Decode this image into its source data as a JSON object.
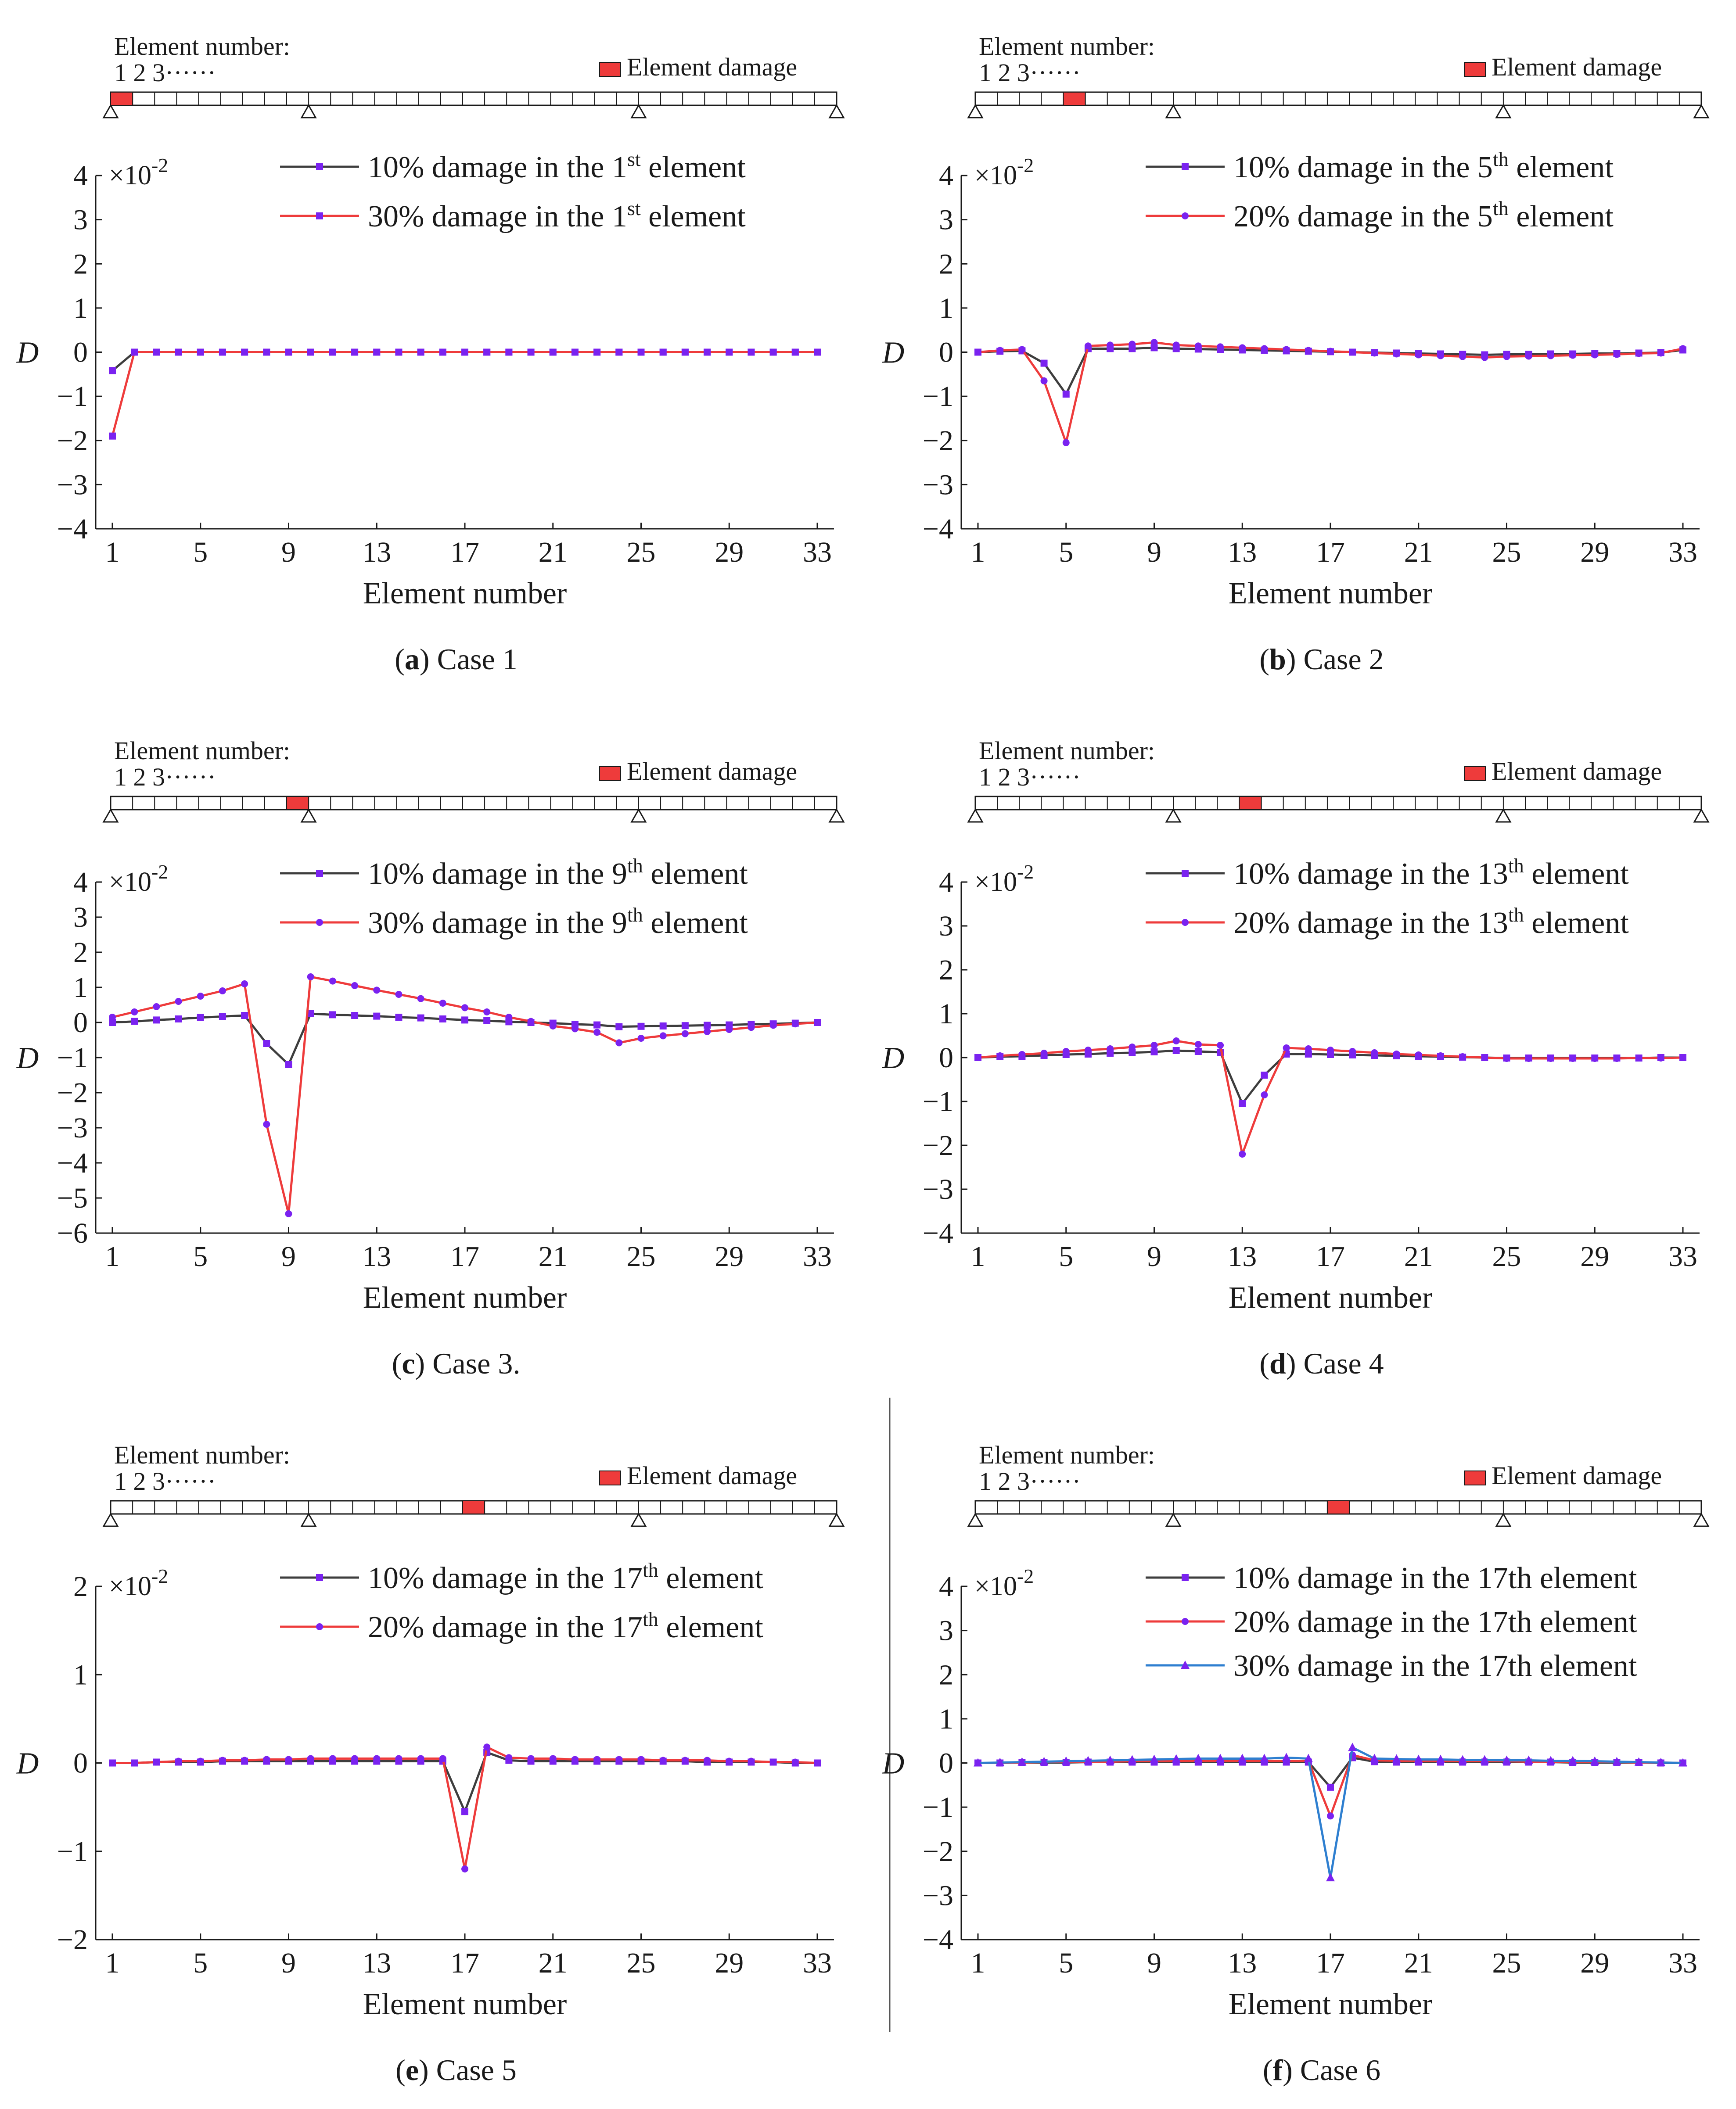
{
  "figure": {
    "beam_label": "Element number:",
    "beam_numbers": "1 2 3······",
    "damage_legend": "Element damage",
    "x_axis_label": "Element number",
    "y_axis_label": "D",
    "scale_label": "×10",
    "scale_exp": "-2",
    "colors": {
      "series_10": "#3d3d3d",
      "series_20": "#ee3b3b",
      "series_30_blue": "#2e7fd0",
      "marker": "#7a22f0",
      "damage": "#ee3b3b",
      "axis": "#1a1a1a"
    }
  },
  "chart_data": [
    {
      "id": "a",
      "type": "line",
      "caption_letter": "a",
      "caption_text": " Case 1",
      "damaged_element": 1,
      "ylim": [
        -4,
        4
      ],
      "yticks": [
        4,
        3,
        2,
        1,
        0,
        -1,
        -2,
        -3,
        -4
      ],
      "xticks": [
        1,
        5,
        9,
        13,
        17,
        21,
        25,
        29,
        33
      ],
      "series": [
        {
          "pre": "10% damage in the 1",
          "sup": "st",
          "post": " element",
          "color": "#3d3d3d",
          "marker": "square",
          "values": [
            -0.42,
            0,
            0,
            0,
            0,
            0,
            0,
            0,
            0,
            0,
            0,
            0,
            0,
            0,
            0,
            0,
            0,
            0,
            0,
            0,
            0,
            0,
            0,
            0,
            0,
            0,
            0,
            0,
            0,
            0,
            0,
            0,
            0
          ]
        },
        {
          "pre": "30% damage in the 1",
          "sup": "st",
          "post": " element",
          "color": "#ee3b3b",
          "marker": "square",
          "values": [
            -1.9,
            0,
            0,
            0,
            0,
            0,
            0,
            0,
            0,
            0,
            0,
            0,
            0,
            0,
            0,
            0,
            0,
            0,
            0,
            0,
            0,
            0,
            0,
            0,
            0,
            0,
            0,
            0,
            0,
            0,
            0,
            0,
            0
          ]
        }
      ]
    },
    {
      "id": "b",
      "type": "line",
      "caption_letter": "b",
      "caption_text": " Case 2",
      "damaged_element": 5,
      "ylim": [
        -4,
        4
      ],
      "yticks": [
        4,
        3,
        2,
        1,
        0,
        -1,
        -2,
        -3,
        -4
      ],
      "xticks": [
        1,
        5,
        9,
        13,
        17,
        21,
        25,
        29,
        33
      ],
      "series": [
        {
          "pre": "10% damage in the 5",
          "sup": "th",
          "post": " element",
          "color": "#3d3d3d",
          "marker": "square",
          "values": [
            0.0,
            0.02,
            0.03,
            -0.25,
            -0.95,
            0.08,
            0.08,
            0.08,
            0.1,
            0.08,
            0.07,
            0.06,
            0.05,
            0.04,
            0.03,
            0.02,
            0.01,
            0.0,
            -0.01,
            -0.02,
            -0.03,
            -0.04,
            -0.05,
            -0.06,
            -0.05,
            -0.05,
            -0.04,
            -0.04,
            -0.03,
            -0.03,
            -0.02,
            -0.01,
            0.05
          ]
        },
        {
          "pre": "20% damage in the 5",
          "sup": "th",
          "post": " element",
          "color": "#ee3b3b",
          "marker": "dot",
          "values": [
            0.0,
            0.04,
            0.06,
            -0.65,
            -2.05,
            0.14,
            0.16,
            0.18,
            0.22,
            0.16,
            0.14,
            0.12,
            0.1,
            0.08,
            0.06,
            0.04,
            0.02,
            0.0,
            -0.02,
            -0.04,
            -0.06,
            -0.08,
            -0.1,
            -0.12,
            -0.1,
            -0.09,
            -0.08,
            -0.07,
            -0.06,
            -0.05,
            -0.03,
            -0.02,
            0.08
          ]
        }
      ]
    },
    {
      "id": "c",
      "type": "line",
      "caption_letter": "c",
      "caption_text": " Case 3.",
      "damaged_element": 9,
      "ylim": [
        -6,
        4
      ],
      "yticks": [
        4,
        3,
        2,
        1,
        0,
        -1,
        -2,
        -3,
        -4,
        -5,
        -6
      ],
      "xticks": [
        1,
        5,
        9,
        13,
        17,
        21,
        25,
        29,
        33
      ],
      "series": [
        {
          "pre": "10% damage in the 9",
          "sup": "th",
          "post": " element",
          "color": "#3d3d3d",
          "marker": "square",
          "values": [
            0.0,
            0.03,
            0.07,
            0.1,
            0.14,
            0.17,
            0.2,
            -0.6,
            -1.2,
            0.25,
            0.22,
            0.2,
            0.18,
            0.15,
            0.13,
            0.1,
            0.07,
            0.05,
            0.02,
            0.0,
            -0.02,
            -0.05,
            -0.07,
            -0.12,
            -0.11,
            -0.1,
            -0.09,
            -0.08,
            -0.07,
            -0.05,
            -0.04,
            -0.02,
            0.0
          ]
        },
        {
          "pre": "30% damage in the 9",
          "sup": "th",
          "post": " element",
          "color": "#ee3b3b",
          "marker": "dot",
          "values": [
            0.15,
            0.3,
            0.45,
            0.6,
            0.75,
            0.9,
            1.1,
            -2.9,
            -5.45,
            1.3,
            1.18,
            1.05,
            0.92,
            0.8,
            0.68,
            0.55,
            0.42,
            0.3,
            0.15,
            0.03,
            -0.1,
            -0.18,
            -0.28,
            -0.58,
            -0.45,
            -0.38,
            -0.32,
            -0.26,
            -0.2,
            -0.14,
            -0.08,
            -0.04,
            0.0
          ]
        }
      ]
    },
    {
      "id": "d",
      "type": "line",
      "caption_letter": "d",
      "caption_text": " Case 4",
      "damaged_element": 13,
      "ylim": [
        -4,
        4
      ],
      "yticks": [
        4,
        3,
        2,
        1,
        0,
        -1,
        -2,
        -3,
        -4
      ],
      "xticks": [
        1,
        5,
        9,
        13,
        17,
        21,
        25,
        29,
        33
      ],
      "series": [
        {
          "pre": "10% damage in the 13",
          "sup": "th",
          "post": " element",
          "color": "#3d3d3d",
          "marker": "square",
          "values": [
            0.0,
            0.02,
            0.03,
            0.05,
            0.07,
            0.08,
            0.1,
            0.11,
            0.13,
            0.16,
            0.14,
            0.12,
            -1.05,
            -0.4,
            0.08,
            0.08,
            0.07,
            0.06,
            0.05,
            0.04,
            0.03,
            0.02,
            0.01,
            0.0,
            -0.01,
            -0.01,
            -0.01,
            -0.01,
            -0.01,
            -0.01,
            -0.01,
            0.0,
            0.0
          ]
        },
        {
          "pre": "20% damage in the 13",
          "sup": "th",
          "post": " element",
          "color": "#ee3b3b",
          "marker": "dot",
          "values": [
            0.0,
            0.04,
            0.07,
            0.1,
            0.14,
            0.17,
            0.2,
            0.24,
            0.28,
            0.38,
            0.3,
            0.28,
            -2.2,
            -0.85,
            0.22,
            0.2,
            0.17,
            0.14,
            0.11,
            0.08,
            0.06,
            0.04,
            0.02,
            0.0,
            -0.02,
            -0.02,
            -0.02,
            -0.02,
            -0.02,
            -0.02,
            -0.01,
            -0.01,
            0.0
          ]
        }
      ]
    },
    {
      "id": "e",
      "type": "line",
      "caption_letter": "e",
      "caption_text": " Case 5",
      "damaged_element": 17,
      "ylim": [
        -2,
        2
      ],
      "yticks": [
        2,
        1,
        0,
        -1,
        -2
      ],
      "xticks": [
        1,
        5,
        9,
        13,
        17,
        21,
        25,
        29,
        33
      ],
      "series": [
        {
          "pre": "10% damage in the 17",
          "sup": "th",
          "post": " element",
          "color": "#3d3d3d",
          "marker": "square",
          "values": [
            0.0,
            0.0,
            0.01,
            0.01,
            0.01,
            0.02,
            0.02,
            0.02,
            0.02,
            0.02,
            0.02,
            0.02,
            0.02,
            0.02,
            0.02,
            0.02,
            -0.55,
            0.12,
            0.03,
            0.02,
            0.02,
            0.02,
            0.02,
            0.02,
            0.02,
            0.02,
            0.02,
            0.01,
            0.01,
            0.01,
            0.01,
            0.0,
            0.0
          ]
        },
        {
          "pre": "20% damage in the 17",
          "sup": "th",
          "post": " element",
          "color": "#ee3b3b",
          "marker": "dot",
          "values": [
            0.0,
            0.0,
            0.01,
            0.02,
            0.02,
            0.03,
            0.03,
            0.04,
            0.04,
            0.05,
            0.05,
            0.05,
            0.05,
            0.05,
            0.05,
            0.05,
            -1.2,
            0.18,
            0.06,
            0.05,
            0.05,
            0.04,
            0.04,
            0.04,
            0.04,
            0.03,
            0.03,
            0.03,
            0.02,
            0.02,
            0.01,
            0.01,
            0.0
          ]
        }
      ]
    },
    {
      "id": "f",
      "type": "line",
      "caption_letter": "f",
      "caption_text": " Case 6",
      "damaged_element": 17,
      "ylim": [
        -4,
        4
      ],
      "yticks": [
        4,
        3,
        2,
        1,
        0,
        -1,
        -2,
        -3,
        -4
      ],
      "xticks": [
        1,
        5,
        9,
        13,
        17,
        21,
        25,
        29,
        33
      ],
      "series": [
        {
          "pre": "10% damage in the 17th element",
          "sup": "",
          "post": "",
          "color": "#3d3d3d",
          "marker": "square",
          "values": [
            0.0,
            0.0,
            0.01,
            0.01,
            0.01,
            0.02,
            0.02,
            0.02,
            0.02,
            0.02,
            0.02,
            0.02,
            0.02,
            0.02,
            0.02,
            0.02,
            -0.55,
            0.12,
            0.03,
            0.02,
            0.02,
            0.02,
            0.02,
            0.02,
            0.02,
            0.02,
            0.02,
            0.01,
            0.01,
            0.01,
            0.01,
            0.0,
            0.0
          ]
        },
        {
          "pre": "20% damage in the 17th element",
          "sup": "",
          "post": "",
          "color": "#ee3b3b",
          "marker": "dot",
          "values": [
            0.0,
            0.0,
            0.01,
            0.02,
            0.02,
            0.03,
            0.03,
            0.04,
            0.04,
            0.05,
            0.05,
            0.05,
            0.05,
            0.05,
            0.05,
            0.05,
            -1.2,
            0.18,
            0.06,
            0.05,
            0.05,
            0.04,
            0.04,
            0.04,
            0.04,
            0.03,
            0.03,
            0.03,
            0.02,
            0.02,
            0.01,
            0.01,
            0.0
          ]
        },
        {
          "pre": "30% damage in the 17th element",
          "sup": "",
          "post": "",
          "color": "#2e7fd0",
          "marker": "triangle",
          "values": [
            0.0,
            0.01,
            0.02,
            0.03,
            0.04,
            0.05,
            0.06,
            0.07,
            0.08,
            0.09,
            0.1,
            0.1,
            0.1,
            0.1,
            0.12,
            0.1,
            -2.6,
            0.35,
            0.1,
            0.09,
            0.08,
            0.08,
            0.07,
            0.07,
            0.06,
            0.06,
            0.05,
            0.05,
            0.04,
            0.03,
            0.02,
            0.01,
            0.0
          ]
        }
      ]
    }
  ]
}
